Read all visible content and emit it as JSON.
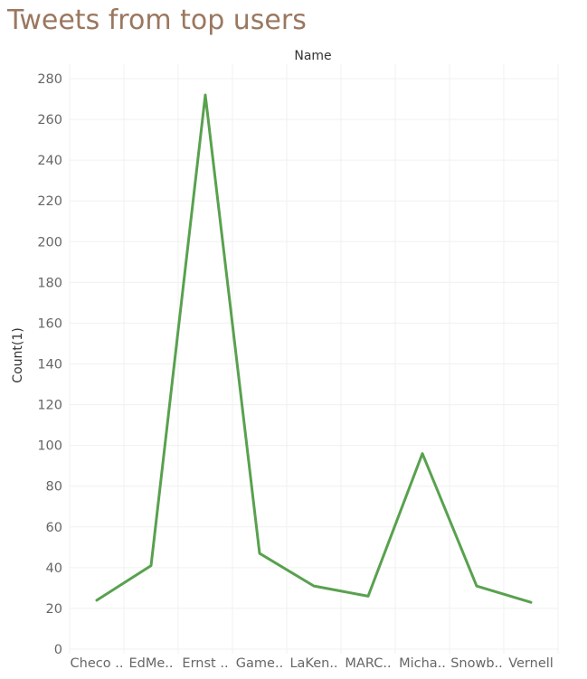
{
  "title": "Tweets from top users",
  "colors": {
    "title": "#9b7760",
    "line": "#59a14f",
    "grid": "#f0f0f0",
    "axis_text": "#666666"
  },
  "chart_data": {
    "type": "line",
    "header_label": "Name",
    "xlabel": "",
    "ylabel": "Count(1)",
    "categories": [
      "Checo ..",
      "EdMe..",
      "Ernst ..",
      "Game..",
      "LaKen..",
      "MARC..",
      "Micha..",
      "Snowb..",
      "Vernell"
    ],
    "series": [
      {
        "values": [
          24,
          41,
          272,
          47,
          31,
          26,
          96,
          31,
          23
        ]
      }
    ],
    "ylim": [
      0,
      280
    ],
    "yticks": [
      0,
      20,
      40,
      60,
      80,
      100,
      120,
      140,
      160,
      180,
      200,
      220,
      240,
      260,
      280
    ],
    "grid": true,
    "legend": "none"
  }
}
